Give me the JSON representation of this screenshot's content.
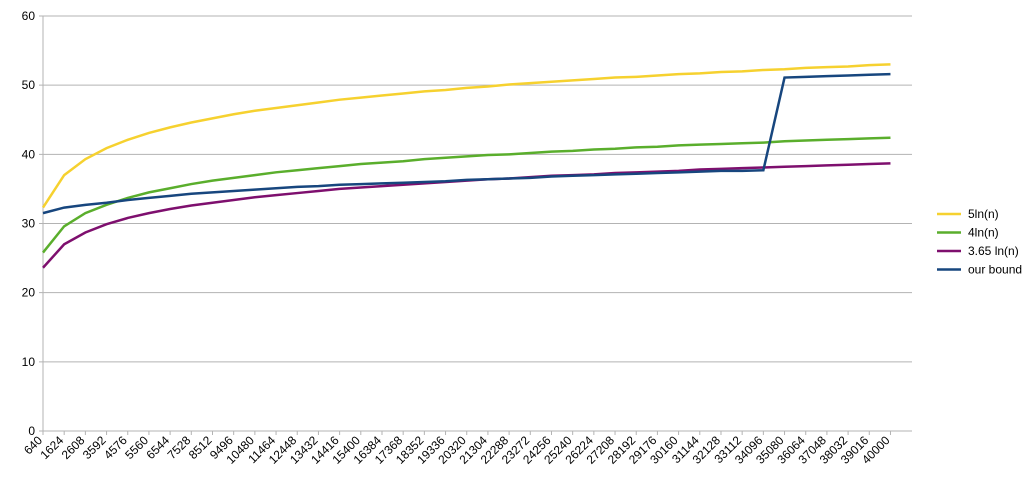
{
  "chart_data": {
    "type": "line",
    "x": [
      640,
      1624,
      2608,
      3592,
      4576,
      5560,
      6544,
      7528,
      8512,
      9496,
      10480,
      11464,
      12448,
      13432,
      14416,
      15400,
      16384,
      17368,
      18352,
      19336,
      20320,
      21304,
      22288,
      23272,
      24256,
      25240,
      26224,
      27208,
      28192,
      29176,
      30160,
      31144,
      32128,
      33112,
      34096,
      35080,
      36064,
      37048,
      38032,
      39016,
      40000
    ],
    "xlim": [
      640,
      41000
    ],
    "ylim": [
      0,
      60
    ],
    "yticks": [
      0,
      10,
      20,
      30,
      40,
      50,
      60
    ],
    "grid": true,
    "legend": "right",
    "series": [
      {
        "name": "5ln(n)",
        "color": "#f6d12f",
        "values": [
          32.3,
          37.0,
          39.3,
          40.9,
          42.1,
          43.1,
          43.9,
          44.6,
          45.2,
          45.8,
          46.3,
          46.7,
          47.1,
          47.5,
          47.9,
          48.2,
          48.5,
          48.8,
          49.1,
          49.3,
          49.6,
          49.8,
          50.1,
          50.3,
          50.5,
          50.7,
          50.9,
          51.1,
          51.2,
          51.4,
          51.6,
          51.7,
          51.9,
          52.0,
          52.2,
          52.3,
          52.5,
          52.6,
          52.7,
          52.9,
          53.0
        ]
      },
      {
        "name": "4ln(n)",
        "color": "#5aae2c",
        "values": [
          25.8,
          29.6,
          31.5,
          32.7,
          33.7,
          34.5,
          35.1,
          35.7,
          36.2,
          36.6,
          37.0,
          37.4,
          37.7,
          38.0,
          38.3,
          38.6,
          38.8,
          39.0,
          39.3,
          39.5,
          39.7,
          39.9,
          40.0,
          40.2,
          40.4,
          40.5,
          40.7,
          40.8,
          41.0,
          41.1,
          41.3,
          41.4,
          41.5,
          41.6,
          41.7,
          41.9,
          42.0,
          42.1,
          42.2,
          42.3,
          42.4
        ]
      },
      {
        "name": "3.65 ln(n)",
        "color": "#7e0f6e",
        "values": [
          23.6,
          27.0,
          28.7,
          29.9,
          30.8,
          31.5,
          32.1,
          32.6,
          33.0,
          33.4,
          33.8,
          34.1,
          34.4,
          34.7,
          35.0,
          35.2,
          35.4,
          35.6,
          35.8,
          36.0,
          36.2,
          36.4,
          36.5,
          36.7,
          36.9,
          37.0,
          37.1,
          37.3,
          37.4,
          37.5,
          37.6,
          37.8,
          37.9,
          38.0,
          38.1,
          38.2,
          38.3,
          38.4,
          38.5,
          38.6,
          38.7
        ]
      },
      {
        "name": "our bound",
        "color": "#17467e",
        "values": [
          31.5,
          32.3,
          32.7,
          33.0,
          33.4,
          33.7,
          34.0,
          34.3,
          34.5,
          34.7,
          34.9,
          35.1,
          35.3,
          35.4,
          35.6,
          35.7,
          35.8,
          35.9,
          36.0,
          36.1,
          36.3,
          36.4,
          36.5,
          36.6,
          36.8,
          36.9,
          37.0,
          37.1,
          37.2,
          37.3,
          37.4,
          37.5,
          37.6,
          37.6,
          37.7,
          51.1,
          51.2,
          51.3,
          51.4,
          51.5,
          51.6
        ]
      }
    ]
  }
}
